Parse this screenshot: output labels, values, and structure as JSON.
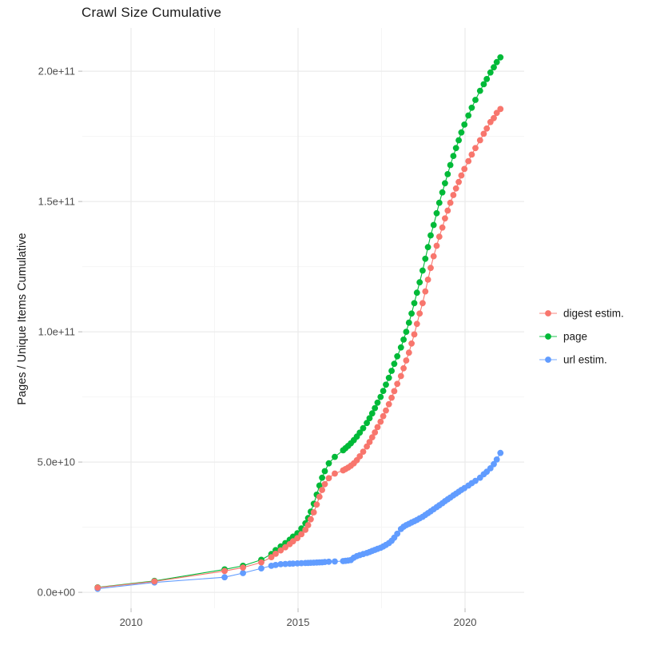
{
  "title": "Crawl Size Cumulative",
  "y_axis": {
    "label": "Pages / Unique Items Cumulative",
    "tick_labels": [
      "0.0e+00",
      "5.0e+10",
      "1.0e+11",
      "1.5e+11",
      "2.0e+11"
    ],
    "tick_values_e9": [
      0,
      50,
      100,
      150,
      200
    ],
    "minor_values_e9": [
      25,
      75,
      125,
      175
    ]
  },
  "x_axis": {
    "tick_labels": [
      "2010",
      "2015",
      "2020"
    ],
    "tick_values": [
      2010,
      2015,
      2020
    ],
    "minor_values": [
      2012.5,
      2017.5
    ]
  },
  "legend": {
    "position": "right",
    "items": [
      {
        "label": "digest estim.",
        "color": "#F8766D"
      },
      {
        "label": "page",
        "color": "#00BA38"
      },
      {
        "label": "url estim.",
        "color": "#619CFF"
      }
    ]
  },
  "colors": {
    "digest": "#F8766D",
    "page": "#00BA38",
    "url": "#619CFF",
    "grid_major": "#EBEBEB",
    "grid_minor": "#F5F5F5",
    "tick_mark": "#C4C4C4",
    "axis_text": "#4D4D4D",
    "background": "#FFFFFF"
  },
  "chart_data": {
    "type": "line",
    "note_units": "values in billions (1e9); y axis shown in scientific notation",
    "title": "Crawl Size Cumulative",
    "xlabel": "",
    "ylabel": "Pages / Unique Items Cumulative",
    "xlim": [
      2008.54,
      2021.77
    ],
    "ylim_e9": [
      -6.1,
      216.6
    ],
    "grid": true,
    "legend_position": "right",
    "x_years": [
      2009.0,
      2010.7,
      2012.8,
      2013.35,
      2013.9,
      2014.2,
      2014.33,
      2014.48,
      2014.62,
      2014.75,
      2014.85,
      2014.98,
      2015.1,
      2015.22,
      2015.3,
      2015.38,
      2015.47,
      2015.56,
      2015.64,
      2015.72,
      2015.8,
      2015.92,
      2016.1,
      2016.35,
      2016.42,
      2016.5,
      2016.58,
      2016.67,
      2016.76,
      2016.85,
      2016.95,
      2017.06,
      2017.14,
      2017.22,
      2017.3,
      2017.38,
      2017.47,
      2017.55,
      2017.63,
      2017.72,
      2017.8,
      2017.88,
      2017.97,
      2018.08,
      2018.16,
      2018.24,
      2018.32,
      2018.4,
      2018.48,
      2018.56,
      2018.64,
      2018.73,
      2018.81,
      2018.89,
      2018.97,
      2019.06,
      2019.15,
      2019.23,
      2019.32,
      2019.4,
      2019.48,
      2019.56,
      2019.65,
      2019.73,
      2019.81,
      2019.89,
      2019.98,
      2020.1,
      2020.2,
      2020.31,
      2020.45,
      2020.56,
      2020.65,
      2020.76,
      2020.86,
      2020.95,
      2021.06
    ],
    "series": [
      {
        "name": "page",
        "color": "#00BA38",
        "values_e9": [
          1.9,
          4.4,
          8.8,
          10.2,
          12.5,
          14.7,
          16.2,
          17.6,
          18.9,
          20.2,
          21.4,
          22.7,
          24.5,
          26.5,
          28.5,
          31,
          34,
          37.5,
          41,
          44,
          46.5,
          49.5,
          52,
          54.5,
          55.3,
          56.2,
          57.2,
          58.4,
          59.8,
          61.3,
          63,
          65,
          66.8,
          68.7,
          70.7,
          72.8,
          75,
          77.3,
          79.7,
          82.3,
          85,
          87.7,
          90.6,
          94,
          97,
          100,
          103.5,
          107,
          111,
          115,
          119,
          123.5,
          128,
          132.5,
          137,
          141,
          145.5,
          149.5,
          153.5,
          157,
          160.5,
          164,
          167.5,
          170.5,
          173.5,
          176.5,
          179.5,
          183,
          186,
          189,
          192.5,
          195,
          197,
          199.5,
          201.5,
          203.5,
          205.3
        ]
      },
      {
        "name": "url estim.",
        "color": "#619CFF",
        "values_e9": [
          1.4,
          3.8,
          5.8,
          7.4,
          9.2,
          10.2,
          10.5,
          10.8,
          10.9,
          11.0,
          11.05,
          11.1,
          11.2,
          11.25,
          11.3,
          11.35,
          11.4,
          11.45,
          11.5,
          11.55,
          11.65,
          11.75,
          11.85,
          12.0,
          12.1,
          12.2,
          12.4,
          13.3,
          13.9,
          14.3,
          14.7,
          15.1,
          15.5,
          15.9,
          16.3,
          16.7,
          17.1,
          17.6,
          18.2,
          18.9,
          19.8,
          21.0,
          22.5,
          24.3,
          25.2,
          25.8,
          26.3,
          26.8,
          27.3,
          27.8,
          28.4,
          29.0,
          29.7,
          30.4,
          31.1,
          31.9,
          32.7,
          33.4,
          34.2,
          35.0,
          35.7,
          36.4,
          37.2,
          37.9,
          38.6,
          39.3,
          40.0,
          41.0,
          41.9,
          42.8,
          44.0,
          45.3,
          46.3,
          47.6,
          49.2,
          51.0,
          53.5
        ]
      },
      {
        "name": "digest estim.",
        "color": "#F8766D",
        "values_e9": [
          1.8,
          4.2,
          8.2,
          9.5,
          11.5,
          13.5,
          14.8,
          16.1,
          17.3,
          18.5,
          19.6,
          20.8,
          22.3,
          24,
          25.8,
          28,
          30.7,
          33.7,
          36.7,
          39.3,
          41.5,
          43.8,
          45.6,
          46.8,
          47.3,
          47.9,
          48.6,
          49.5,
          50.7,
          52.2,
          54,
          56,
          57.7,
          59.5,
          61.4,
          63.4,
          65.5,
          67.6,
          69.8,
          72.2,
          74.7,
          77.2,
          80,
          83,
          86,
          89,
          92,
          95.5,
          99,
          103,
          107,
          111,
          115.5,
          120,
          124.5,
          129,
          133,
          136.5,
          140,
          143.5,
          146.5,
          149.5,
          152.5,
          155,
          157.5,
          160,
          162.5,
          165.5,
          168,
          170.5,
          173.5,
          176,
          178,
          180.5,
          182,
          184,
          185.5
        ]
      }
    ]
  }
}
